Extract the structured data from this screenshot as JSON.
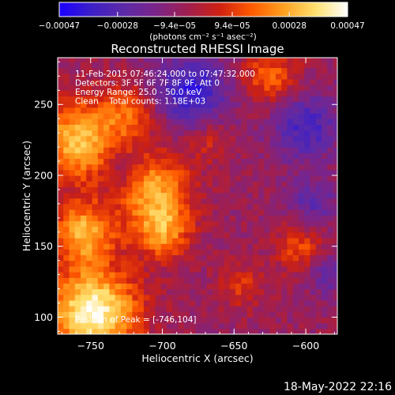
{
  "chart_data": {
    "type": "heatmap",
    "title": "Reconstructed RHESSI Image",
    "xlabel": "Heliocentric X (arcsec)",
    "ylabel": "Heliocentric Y (arcsec)",
    "xlim": [
      -773,
      -578
    ],
    "ylim": [
      88,
      283
    ],
    "x_ticks": [
      -750,
      -700,
      -650,
      -600
    ],
    "y_ticks": [
      100,
      150,
      200,
      250
    ],
    "x_tick_labels": [
      "−750",
      "−700",
      "−650",
      "−600"
    ],
    "y_tick_labels": [
      "100",
      "150",
      "200",
      "250"
    ],
    "colorbar": {
      "range": [
        -0.00047,
        0.00047
      ],
      "tick_values": [
        -0.00047,
        -0.00028,
        -9.4e-05,
        9.4e-05,
        0.00028,
        0.00047
      ],
      "tick_labels": [
        "−0.00047",
        "−0.00028",
        "−9.4e−05",
        "9.4e−05",
        "0.00028",
        "0.00047"
      ],
      "unit_label": "(photons cm⁻² s⁻¹ asec⁻²)",
      "stops": [
        "#1a00ff",
        "#3c1fc7",
        "#5c2aa8",
        "#7a248a",
        "#a01f50",
        "#cd2012",
        "#ff5a00",
        "#ffa020",
        "#ffe070",
        "#ffffff"
      ]
    },
    "annotations": [
      "11-Feb-2015 07:46:24.000 to 07:47:32.000",
      "Detectors: 3F 5F 6F 7F 8F 9F, Att 0",
      "Energy Range: 25.0 - 50.0 keV",
      "Clean    Total counts: 1.18E+03"
    ],
    "peak_label": "Position of Peak = [-746,104]",
    "peak": [
      -746,
      104
    ],
    "grid": false,
    "sources": [
      {
        "x": -748,
        "y": 104,
        "sigma": 22,
        "amplitude": 1.0
      },
      {
        "x": -755,
        "y": 160,
        "sigma": 15,
        "amplitude": 0.7
      },
      {
        "x": -758,
        "y": 225,
        "sigma": 20,
        "amplitude": 0.75
      },
      {
        "x": -705,
        "y": 190,
        "sigma": 18,
        "amplitude": 0.65
      },
      {
        "x": -700,
        "y": 160,
        "sigma": 14,
        "amplitude": 0.55
      },
      {
        "x": -722,
        "y": 245,
        "sigma": 14,
        "amplitude": 0.4
      },
      {
        "x": -625,
        "y": 270,
        "sigma": 14,
        "amplitude": 0.45
      },
      {
        "x": -605,
        "y": 150,
        "sigma": 12,
        "amplitude": 0.4
      },
      {
        "x": -645,
        "y": 122,
        "sigma": 12,
        "amplitude": 0.28
      },
      {
        "x": -668,
        "y": 225,
        "sigma": 10,
        "amplitude": 0.25
      }
    ],
    "negative_regions": [
      {
        "x": -680,
        "y": 260,
        "sigma": 18,
        "amplitude": 0.6
      },
      {
        "x": -600,
        "y": 235,
        "sigma": 16,
        "amplitude": 0.5
      },
      {
        "x": -595,
        "y": 180,
        "sigma": 12,
        "amplitude": 0.35
      },
      {
        "x": -728,
        "y": 205,
        "sigma": 9,
        "amplitude": 0.3
      },
      {
        "x": -585,
        "y": 130,
        "sigma": 10,
        "amplitude": 0.3
      }
    ]
  },
  "footer": {
    "timestamp": "18-May-2022 22:16"
  }
}
